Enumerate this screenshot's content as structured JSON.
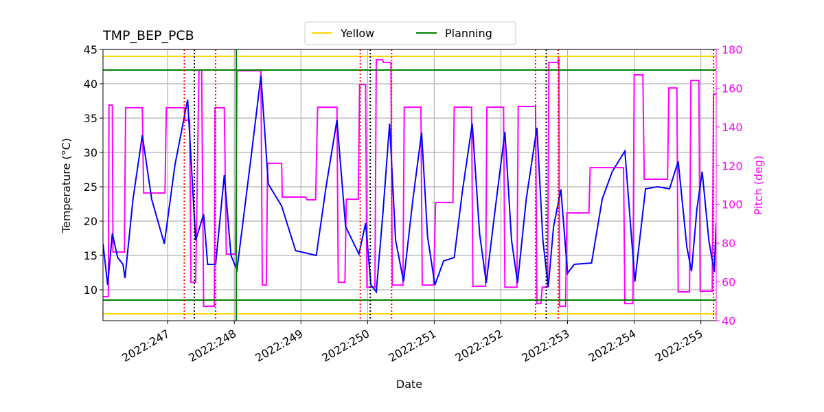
{
  "chart_data": {
    "type": "line",
    "title": "TMP_BEP_PCB",
    "xlabel": "Date",
    "ylabel": "Temperature (°C)",
    "y2label": "Pitch (deg)",
    "y2color": "#ff00ff",
    "xlim": [
      246.03,
      255.23
    ],
    "xticks": [
      {
        "value": 247,
        "label": "2022:247"
      },
      {
        "value": 248,
        "label": "2022:248"
      },
      {
        "value": 249,
        "label": "2022:249"
      },
      {
        "value": 250,
        "label": "2022:250"
      },
      {
        "value": 251,
        "label": "2022:251"
      },
      {
        "value": 252,
        "label": "2022:252"
      },
      {
        "value": 253,
        "label": "2022:253"
      },
      {
        "value": 254,
        "label": "2022:254"
      },
      {
        "value": 255,
        "label": "2022:255"
      }
    ],
    "ylim": [
      5.5,
      45
    ],
    "yticks": [
      10,
      15,
      20,
      25,
      30,
      35,
      40,
      45
    ],
    "y2lim": [
      40,
      180
    ],
    "y2ticks": [
      40,
      60,
      80,
      100,
      120,
      140,
      160,
      180
    ],
    "grid": true,
    "legend": "upper center",
    "series": [
      {
        "color": "#ff00ff",
        "axis": "y2",
        "x": [
          246.03,
          246.11,
          246.12,
          246.17,
          246.18,
          246.35,
          246.37,
          246.62,
          246.64,
          246.96,
          246.98,
          247.25,
          247.26,
          247.33,
          247.35,
          247.42,
          247.47,
          247.51,
          247.54,
          247.7,
          247.71,
          247.85,
          247.88,
          248.02,
          248.04,
          248.4,
          248.42,
          248.48,
          248.5,
          248.71,
          248.72,
          249.07,
          249.09,
          249.22,
          249.25,
          249.54,
          249.56,
          249.66,
          249.68,
          249.86,
          249.88,
          249.97,
          249.99,
          250.11,
          250.13,
          250.22,
          250.24,
          250.35,
          250.37,
          250.53,
          250.55,
          250.8,
          250.82,
          250.99,
          251.02,
          251.28,
          251.3,
          251.56,
          251.58,
          251.77,
          251.79,
          252.04,
          252.06,
          252.24,
          252.26,
          252.52,
          252.54,
          252.6,
          252.62,
          252.7,
          252.72,
          252.85,
          252.87,
          252.88,
          252.97,
          252.99,
          253.32,
          253.34,
          253.84,
          253.86,
          253.98,
          254.0,
          254.13,
          254.15,
          254.5,
          254.52,
          254.64,
          254.66,
          254.83,
          254.85,
          254.97,
          254.99,
          255.17,
          255.19,
          255.23
        ],
        "values": [
          52.4,
          52.4,
          151.3,
          151.3,
          75.4,
          75.4,
          149.9,
          149.9,
          105.9,
          105.9,
          149.9,
          149.9,
          143.5,
          143.5,
          59.8,
          59.8,
          169.4,
          169.4,
          47.4,
          47.4,
          149.9,
          149.9,
          74.4,
          74.4,
          169.0,
          169.0,
          58.4,
          58.4,
          121.2,
          121.2,
          103.8,
          103.8,
          102.4,
          102.4,
          150.2,
          150.2,
          59.8,
          59.8,
          102.7,
          102.7,
          161.9,
          161.9,
          57.3,
          57.3,
          174.7,
          174.7,
          173.3,
          173.3,
          58.4,
          58.4,
          150.2,
          150.2,
          58.4,
          58.4,
          101.0,
          101.0,
          150.2,
          150.2,
          57.7,
          57.7,
          150.2,
          150.2,
          57.3,
          57.3,
          150.6,
          150.6,
          48.8,
          48.8,
          57.3,
          57.3,
          173.3,
          173.3,
          175.4,
          47.4,
          47.4,
          95.6,
          95.6,
          119.0,
          119.0,
          48.8,
          48.8,
          166.9,
          166.9,
          113.0,
          113.0,
          160.1,
          160.1,
          54.9,
          54.9,
          164.0,
          164.0,
          55.2,
          55.2,
          157.0,
          157.0
        ]
      },
      {
        "color": "#0000ff",
        "x": [
          246.03,
          246.1,
          246.17,
          246.25,
          246.33,
          246.36,
          246.48,
          246.62,
          246.76,
          246.95,
          247.11,
          247.3,
          247.42,
          247.54,
          247.6,
          247.72,
          247.85,
          247.95,
          248.04,
          248.25,
          248.4,
          248.51,
          248.71,
          248.92,
          249.23,
          249.38,
          249.54,
          249.67,
          249.87,
          249.97,
          250.05,
          250.13,
          250.23,
          250.33,
          250.42,
          250.54,
          250.68,
          250.81,
          250.9,
          251.01,
          251.14,
          251.3,
          251.42,
          251.57,
          251.68,
          251.78,
          251.92,
          252.06,
          252.16,
          252.25,
          252.38,
          252.54,
          252.63,
          252.71,
          252.79,
          252.9,
          253.0,
          253.1,
          253.36,
          253.52,
          253.67,
          253.86,
          254.01,
          254.17,
          254.35,
          254.53,
          254.66,
          254.79,
          254.86,
          254.94,
          255.02,
          255.12,
          255.2,
          255.23
        ],
        "values": [
          16.7,
          10.7,
          18.2,
          14.7,
          13.7,
          11.7,
          23.2,
          32.5,
          23.2,
          16.7,
          28.2,
          37.7,
          17.2,
          21.0,
          13.7,
          13.7,
          26.7,
          15.0,
          12.9,
          29.2,
          41.2,
          25.4,
          22.2,
          15.7,
          15.0,
          25.2,
          34.7,
          19.2,
          15.2,
          19.7,
          10.7,
          9.7,
          21.2,
          34.2,
          17.2,
          11.2,
          23.2,
          32.9,
          17.7,
          10.7,
          14.2,
          14.7,
          24.2,
          34.2,
          18.2,
          11.0,
          22.2,
          33.0,
          17.2,
          11.0,
          23.2,
          33.6,
          17.2,
          10.4,
          19.2,
          24.6,
          12.4,
          13.7,
          13.9,
          23.2,
          27.2,
          30.2,
          11.2,
          24.7,
          25.0,
          24.7,
          28.7,
          16.2,
          12.7,
          21.7,
          27.2,
          17.2,
          12.6,
          19.7
        ]
      }
    ],
    "hlines": [
      {
        "name": "Yellow",
        "color": "#ffd700",
        "values": [
          6.5,
          44
        ]
      },
      {
        "name": "Planning",
        "color": "#008000",
        "values": [
          8.5,
          42
        ]
      }
    ],
    "vlines": [
      {
        "color": "#ff0000",
        "style": "dotted",
        "x": [
          247.25,
          247.72,
          249.89,
          250.36,
          252.52,
          252.86,
          255.19
        ]
      },
      {
        "color": "#000000",
        "style": "dotted",
        "x": [
          247.4,
          250.04,
          252.68
        ]
      },
      {
        "color": "#008000",
        "style": "solid",
        "x": [
          248.03
        ]
      }
    ]
  }
}
